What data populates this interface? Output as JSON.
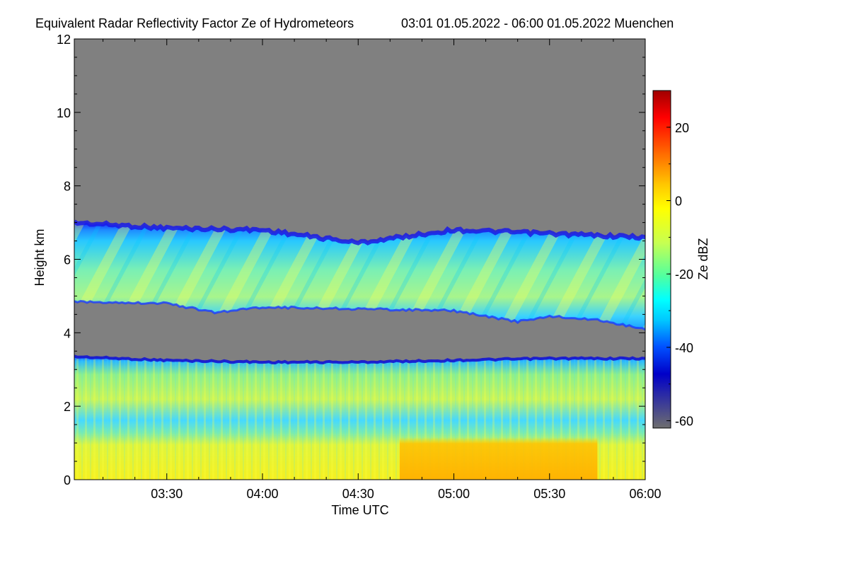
{
  "chart_data": {
    "type": "heatmap",
    "title": "Equivalent Radar Reflectivity Factor Ze of Hydrometeors",
    "subtitle": "03:01 01.05.2022 - 06:00 01.05.2022 Muenchen",
    "xlabel": "Time UTC",
    "ylabel": "Height km",
    "colorbar_label": "Ze dBZ",
    "x_ticks": [
      "03:30",
      "04:00",
      "04:30",
      "05:00",
      "05:30",
      "06:00"
    ],
    "x_range": [
      "03:01",
      "06:00"
    ],
    "y_ticks": [
      "0",
      "2",
      "4",
      "6",
      "8",
      "10",
      "12"
    ],
    "y_range": [
      0,
      12
    ],
    "colorbar_ticks": [
      "20",
      "0",
      "-20",
      "-40",
      "-60"
    ],
    "colorbar_range": [
      -62,
      30
    ],
    "no_data_color": "#808080",
    "colormap": [
      "#6e6e6e",
      "#0000c8",
      "#0050ff",
      "#00c8ff",
      "#00ffff",
      "#50ffa0",
      "#c8ff50",
      "#ffff00",
      "#ffc800",
      "#ff6400",
      "#ff0000",
      "#a00000"
    ],
    "layers": [
      {
        "name": "upper cloud layer",
        "top_km": {
          "03:01": 7.0,
          "03:30": 6.85,
          "04:00": 6.8,
          "04:30": 6.45,
          "05:00": 6.8,
          "05:30": 6.7,
          "06:00": 6.6
        },
        "base_km": {
          "03:01": 4.85,
          "03:30": 4.8,
          "03:45": 4.55,
          "04:00": 4.7,
          "04:30": 4.65,
          "05:00": 4.6,
          "05:20": 4.3,
          "05:30": 4.45,
          "05:45": 4.35,
          "06:00": 4.1
        },
        "typical_ze_dbz": [
          -20,
          -5
        ],
        "edge_ze_dbz": -45
      },
      {
        "name": "lower precipitation layer",
        "top_km": {
          "03:01": 3.35,
          "03:30": 3.25,
          "04:00": 3.2,
          "04:30": 3.2,
          "05:00": 3.25,
          "05:30": 3.3,
          "06:00": 3.3
        },
        "base_km": {
          "03:01": 0,
          "06:00": 0
        },
        "typical_ze_dbz": [
          -15,
          0
        ],
        "near_surface_ze_dbz": [
          0,
          8
        ]
      }
    ]
  }
}
